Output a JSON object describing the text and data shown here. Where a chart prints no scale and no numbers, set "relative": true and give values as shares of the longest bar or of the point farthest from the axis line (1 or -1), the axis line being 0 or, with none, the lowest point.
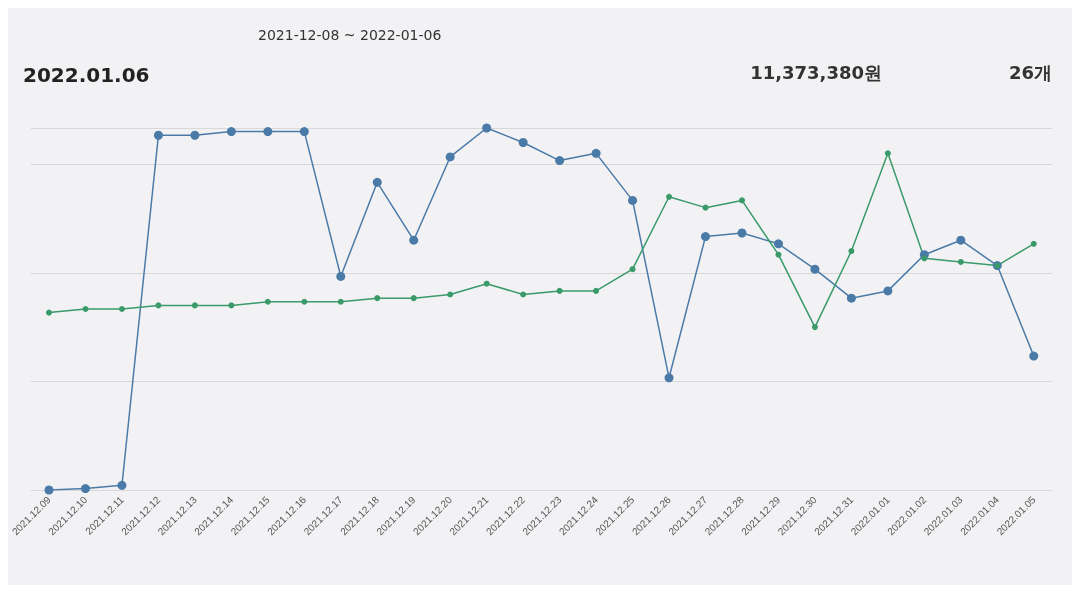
{
  "chart_data": {
    "type": "line",
    "title": "2022.01.06",
    "annotations": [
      "2021-12-08 ~ 2022-01-06",
      "11,373,380원",
      "26개"
    ],
    "categories": [
      "2021.12.09",
      "2021.12.10",
      "2021.12.11",
      "2021.12.12",
      "2021.12.13",
      "2021.12.14",
      "2021.12.15",
      "2021.12.16",
      "2021.12.17",
      "2021.12.18",
      "2021.12.19",
      "2021.12.20",
      "2021.12.21",
      "2021.12.22",
      "2021.12.23",
      "2021.12.24",
      "2021.12.25",
      "2021.12.26",
      "2021.12.27",
      "2021.12.28",
      "2021.12.29",
      "2021.12.30",
      "2021.12.31",
      "2022.01.01",
      "2022.01.02",
      "2022.01.03",
      "2022.01.04",
      "2022.01.05"
    ],
    "series": [
      {
        "color": "#4a7aa8",
        "values": [
          0,
          0.004,
          0.013,
          0.98,
          0.98,
          0.99,
          0.99,
          0.99,
          0.59,
          0.85,
          0.69,
          0.92,
          1.0,
          0.96,
          0.91,
          0.93,
          0.8,
          0.31,
          0.7,
          0.71,
          0.68,
          0.61,
          0.53,
          0.55,
          0.65,
          0.69,
          0.62,
          0.37
        ]
      },
      {
        "color": "#3a9a6a",
        "values": [
          0.49,
          0.5,
          0.5,
          0.51,
          0.51,
          0.51,
          0.52,
          0.52,
          0.52,
          0.53,
          0.53,
          0.54,
          0.57,
          0.54,
          0.55,
          0.55,
          0.61,
          0.81,
          0.78,
          0.8,
          0.65,
          0.45,
          0.66,
          0.93,
          0.64,
          0.63,
          0.62,
          0.68
        ]
      }
    ],
    "relative": true,
    "grid": "y",
    "marker": "circle",
    "line_style": "solid"
  }
}
